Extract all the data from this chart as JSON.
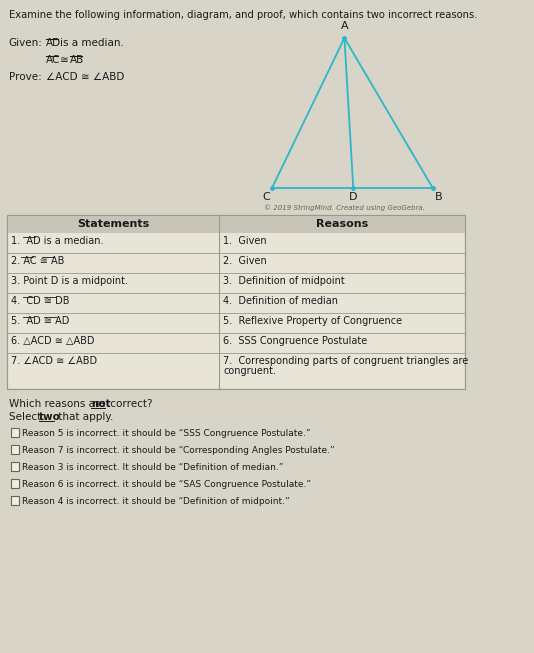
{
  "title": "Examine the following information, diagram, and proof, which contains two incorrect reasons.",
  "copyright": "© 2019 StringMind. Created using GeoGebra.",
  "table_header_left": "Statements",
  "table_header_right": "Reasons",
  "statements": [
    "1.  AD is a median.",
    "2. AC ≅ AB",
    "3. Point D is a midpoint.",
    "4.  CD ≅ DB",
    "5.  AD ≅ AD",
    "6. △ACD ≅ △ABD",
    "7. ∠ACD ≅ ∠ABD"
  ],
  "reasons": [
    "1.  Given",
    "2.  Given",
    "3.  Definition of midpoint",
    "4.  Definition of median",
    "5.  Reflexive Property of Congruence",
    "6.  SSS Congruence Postulate",
    "7.  Corresponding parts of congruent triangles are\ncongruent."
  ],
  "options": [
    "Reason 5 is incorrect. it should be “SSS Congruence Postulate.”",
    "Reason 7 is incorrect. it should be “Corresponding Angles Postulate.”",
    "Reason 3 is incorrect. It should be “Definition of median.”",
    "Reason 6 is incorrect. it should be “SAS Congruence Postulate.”",
    "Reason 4 is incorrect. it should be “Definition of midpoint.”"
  ],
  "bg_color": "#d8d4c8",
  "table_bg": "#e8e4d8",
  "table_header_bg": "#c8c4b8",
  "triangle_color": "#2ab8c8",
  "text_color": "#1a1a1a",
  "border_color": "#999988"
}
